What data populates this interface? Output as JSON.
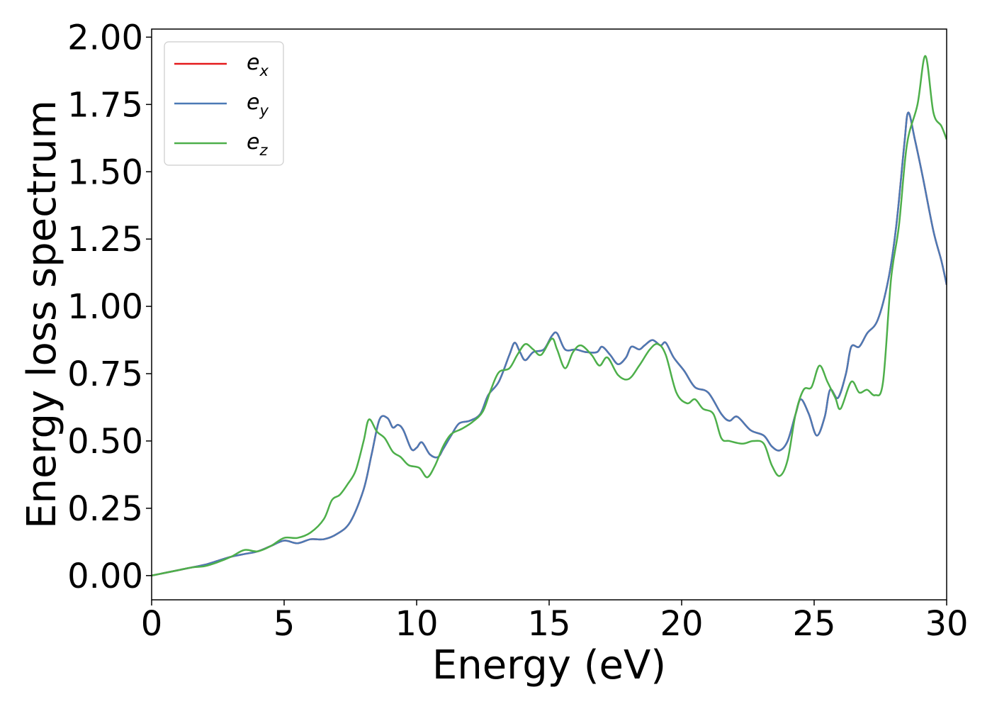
{
  "chart_data": {
    "type": "line",
    "xlabel": "Energy (eV)",
    "ylabel": "Energy loss spectrum",
    "xlim": [
      0,
      30
    ],
    "ylim": [
      -0.09,
      2.03
    ],
    "xticks": [
      0,
      5,
      10,
      15,
      20,
      25,
      30
    ],
    "xtick_labels": [
      "0",
      "5",
      "10",
      "15",
      "20",
      "25",
      "30"
    ],
    "yticks": [
      0,
      0.25,
      0.5,
      0.75,
      1.0,
      1.25,
      1.5,
      1.75,
      2.0
    ],
    "ytick_labels": [
      "0.00",
      "0.25",
      "0.50",
      "0.75",
      "1.00",
      "1.25",
      "1.50",
      "1.75",
      "2.00"
    ],
    "grid": false,
    "legend_position": "top-left",
    "series": [
      {
        "name": "e",
        "subscript": "x",
        "color": "#e41a1c",
        "points": [
          [
            0,
            0
          ],
          [
            0.5,
            0.01
          ],
          [
            1,
            0.02
          ],
          [
            1.5,
            0.03
          ],
          [
            2,
            0.04
          ],
          [
            2.5,
            0.055
          ],
          [
            3,
            0.07
          ],
          [
            3.5,
            0.08
          ],
          [
            4,
            0.09
          ],
          [
            4.5,
            0.11
          ],
          [
            5,
            0.13
          ],
          [
            5.5,
            0.12
          ],
          [
            6,
            0.135
          ],
          [
            6.5,
            0.135
          ],
          [
            7,
            0.155
          ],
          [
            7.5,
            0.2
          ],
          [
            8,
            0.32
          ],
          [
            8.3,
            0.45
          ],
          [
            8.6,
            0.58
          ],
          [
            8.9,
            0.585
          ],
          [
            9.1,
            0.55
          ],
          [
            9.3,
            0.56
          ],
          [
            9.5,
            0.54
          ],
          [
            9.8,
            0.47
          ],
          [
            10,
            0.475
          ],
          [
            10.2,
            0.495
          ],
          [
            10.5,
            0.45
          ],
          [
            10.8,
            0.44
          ],
          [
            11,
            0.47
          ],
          [
            11.3,
            0.52
          ],
          [
            11.6,
            0.565
          ],
          [
            12,
            0.575
          ],
          [
            12.4,
            0.6
          ],
          [
            12.7,
            0.67
          ],
          [
            13.1,
            0.72
          ],
          [
            13.5,
            0.82
          ],
          [
            13.7,
            0.865
          ],
          [
            13.9,
            0.83
          ],
          [
            14.1,
            0.8
          ],
          [
            14.4,
            0.83
          ],
          [
            14.8,
            0.84
          ],
          [
            15.1,
            0.89
          ],
          [
            15.3,
            0.9
          ],
          [
            15.6,
            0.84
          ],
          [
            16,
            0.84
          ],
          [
            16.4,
            0.83
          ],
          [
            16.8,
            0.83
          ],
          [
            17,
            0.85
          ],
          [
            17.3,
            0.82
          ],
          [
            17.6,
            0.785
          ],
          [
            17.9,
            0.81
          ],
          [
            18.1,
            0.85
          ],
          [
            18.4,
            0.84
          ],
          [
            18.6,
            0.855
          ],
          [
            18.9,
            0.875
          ],
          [
            19.2,
            0.855
          ],
          [
            19.4,
            0.865
          ],
          [
            19.7,
            0.81
          ],
          [
            20.1,
            0.76
          ],
          [
            20.5,
            0.7
          ],
          [
            21,
            0.68
          ],
          [
            21.5,
            0.6
          ],
          [
            21.8,
            0.575
          ],
          [
            22.1,
            0.59
          ],
          [
            22.6,
            0.54
          ],
          [
            23.1,
            0.52
          ],
          [
            23.4,
            0.48
          ],
          [
            23.7,
            0.465
          ],
          [
            24,
            0.5
          ],
          [
            24.3,
            0.6
          ],
          [
            24.5,
            0.655
          ],
          [
            24.8,
            0.6
          ],
          [
            25.1,
            0.52
          ],
          [
            25.4,
            0.59
          ],
          [
            25.6,
            0.69
          ],
          [
            25.9,
            0.66
          ],
          [
            26.2,
            0.75
          ],
          [
            26.4,
            0.85
          ],
          [
            26.7,
            0.85
          ],
          [
            27,
            0.9
          ],
          [
            27.4,
            0.95
          ],
          [
            27.8,
            1.1
          ],
          [
            28.1,
            1.3
          ],
          [
            28.4,
            1.6
          ],
          [
            28.55,
            1.72
          ],
          [
            28.8,
            1.62
          ],
          [
            29.1,
            1.48
          ],
          [
            29.5,
            1.28
          ],
          [
            29.8,
            1.17
          ],
          [
            30,
            1.08
          ]
        ]
      },
      {
        "name": "e",
        "subscript": "y",
        "color": "#4b7ab5",
        "points": [
          [
            0,
            0
          ],
          [
            0.5,
            0.01
          ],
          [
            1,
            0.02
          ],
          [
            1.5,
            0.03
          ],
          [
            2,
            0.04
          ],
          [
            2.5,
            0.055
          ],
          [
            3,
            0.07
          ],
          [
            3.5,
            0.08
          ],
          [
            4,
            0.09
          ],
          [
            4.5,
            0.11
          ],
          [
            5,
            0.13
          ],
          [
            5.5,
            0.12
          ],
          [
            6,
            0.135
          ],
          [
            6.5,
            0.135
          ],
          [
            7,
            0.155
          ],
          [
            7.5,
            0.2
          ],
          [
            8,
            0.32
          ],
          [
            8.3,
            0.45
          ],
          [
            8.6,
            0.58
          ],
          [
            8.9,
            0.585
          ],
          [
            9.1,
            0.55
          ],
          [
            9.3,
            0.56
          ],
          [
            9.5,
            0.54
          ],
          [
            9.8,
            0.47
          ],
          [
            10,
            0.475
          ],
          [
            10.2,
            0.495
          ],
          [
            10.5,
            0.45
          ],
          [
            10.8,
            0.44
          ],
          [
            11,
            0.47
          ],
          [
            11.3,
            0.52
          ],
          [
            11.6,
            0.565
          ],
          [
            12,
            0.575
          ],
          [
            12.4,
            0.6
          ],
          [
            12.7,
            0.67
          ],
          [
            13.1,
            0.72
          ],
          [
            13.5,
            0.82
          ],
          [
            13.7,
            0.865
          ],
          [
            13.9,
            0.83
          ],
          [
            14.1,
            0.8
          ],
          [
            14.4,
            0.83
          ],
          [
            14.8,
            0.84
          ],
          [
            15.1,
            0.89
          ],
          [
            15.3,
            0.9
          ],
          [
            15.6,
            0.84
          ],
          [
            16,
            0.84
          ],
          [
            16.4,
            0.83
          ],
          [
            16.8,
            0.83
          ],
          [
            17,
            0.85
          ],
          [
            17.3,
            0.82
          ],
          [
            17.6,
            0.785
          ],
          [
            17.9,
            0.81
          ],
          [
            18.1,
            0.85
          ],
          [
            18.4,
            0.84
          ],
          [
            18.6,
            0.855
          ],
          [
            18.9,
            0.875
          ],
          [
            19.2,
            0.855
          ],
          [
            19.4,
            0.865
          ],
          [
            19.7,
            0.81
          ],
          [
            20.1,
            0.76
          ],
          [
            20.5,
            0.7
          ],
          [
            21,
            0.68
          ],
          [
            21.5,
            0.6
          ],
          [
            21.8,
            0.575
          ],
          [
            22.1,
            0.59
          ],
          [
            22.6,
            0.54
          ],
          [
            23.1,
            0.52
          ],
          [
            23.4,
            0.48
          ],
          [
            23.7,
            0.465
          ],
          [
            24,
            0.5
          ],
          [
            24.3,
            0.6
          ],
          [
            24.5,
            0.655
          ],
          [
            24.8,
            0.6
          ],
          [
            25.1,
            0.52
          ],
          [
            25.4,
            0.59
          ],
          [
            25.6,
            0.69
          ],
          [
            25.9,
            0.66
          ],
          [
            26.2,
            0.75
          ],
          [
            26.4,
            0.85
          ],
          [
            26.7,
            0.85
          ],
          [
            27,
            0.9
          ],
          [
            27.4,
            0.95
          ],
          [
            27.8,
            1.1
          ],
          [
            28.1,
            1.3
          ],
          [
            28.4,
            1.6
          ],
          [
            28.55,
            1.72
          ],
          [
            28.8,
            1.62
          ],
          [
            29.1,
            1.48
          ],
          [
            29.5,
            1.28
          ],
          [
            29.8,
            1.17
          ],
          [
            30,
            1.08
          ]
        ]
      },
      {
        "name": "e",
        "subscript": "z",
        "color": "#4daf4a",
        "points": [
          [
            0,
            0
          ],
          [
            0.5,
            0.01
          ],
          [
            1,
            0.02
          ],
          [
            1.5,
            0.03
          ],
          [
            2,
            0.035
          ],
          [
            2.5,
            0.05
          ],
          [
            3,
            0.07
          ],
          [
            3.5,
            0.095
          ],
          [
            4,
            0.09
          ],
          [
            4.5,
            0.11
          ],
          [
            5,
            0.14
          ],
          [
            5.5,
            0.14
          ],
          [
            6,
            0.16
          ],
          [
            6.5,
            0.21
          ],
          [
            6.8,
            0.28
          ],
          [
            7.1,
            0.3
          ],
          [
            7.4,
            0.34
          ],
          [
            7.7,
            0.39
          ],
          [
            8,
            0.5
          ],
          [
            8.2,
            0.58
          ],
          [
            8.5,
            0.535
          ],
          [
            8.8,
            0.51
          ],
          [
            9.1,
            0.46
          ],
          [
            9.4,
            0.44
          ],
          [
            9.7,
            0.41
          ],
          [
            10.1,
            0.4
          ],
          [
            10.4,
            0.365
          ],
          [
            10.7,
            0.41
          ],
          [
            11,
            0.48
          ],
          [
            11.3,
            0.525
          ],
          [
            11.7,
            0.545
          ],
          [
            12.1,
            0.57
          ],
          [
            12.5,
            0.61
          ],
          [
            12.8,
            0.69
          ],
          [
            13.1,
            0.755
          ],
          [
            13.5,
            0.77
          ],
          [
            13.8,
            0.82
          ],
          [
            14.1,
            0.86
          ],
          [
            14.4,
            0.84
          ],
          [
            14.7,
            0.82
          ],
          [
            15.1,
            0.88
          ],
          [
            15.3,
            0.84
          ],
          [
            15.6,
            0.77
          ],
          [
            15.9,
            0.83
          ],
          [
            16.2,
            0.855
          ],
          [
            16.6,
            0.82
          ],
          [
            16.9,
            0.78
          ],
          [
            17.2,
            0.81
          ],
          [
            17.6,
            0.745
          ],
          [
            18,
            0.73
          ],
          [
            18.4,
            0.78
          ],
          [
            18.8,
            0.84
          ],
          [
            19.1,
            0.86
          ],
          [
            19.4,
            0.82
          ],
          [
            19.8,
            0.68
          ],
          [
            20.2,
            0.64
          ],
          [
            20.5,
            0.655
          ],
          [
            20.8,
            0.62
          ],
          [
            21.2,
            0.6
          ],
          [
            21.5,
            0.51
          ],
          [
            21.8,
            0.5
          ],
          [
            22.3,
            0.49
          ],
          [
            22.7,
            0.5
          ],
          [
            23.1,
            0.49
          ],
          [
            23.4,
            0.41
          ],
          [
            23.7,
            0.37
          ],
          [
            24,
            0.43
          ],
          [
            24.3,
            0.6
          ],
          [
            24.6,
            0.69
          ],
          [
            24.9,
            0.7
          ],
          [
            25.2,
            0.78
          ],
          [
            25.5,
            0.72
          ],
          [
            25.8,
            0.66
          ],
          [
            26,
            0.62
          ],
          [
            26.4,
            0.72
          ],
          [
            26.7,
            0.68
          ],
          [
            27,
            0.69
          ],
          [
            27.3,
            0.67
          ],
          [
            27.6,
            0.72
          ],
          [
            27.9,
            1.1
          ],
          [
            28.2,
            1.3
          ],
          [
            28.5,
            1.6
          ],
          [
            28.9,
            1.75
          ],
          [
            29.2,
            1.93
          ],
          [
            29.5,
            1.72
          ],
          [
            29.8,
            1.67
          ],
          [
            30,
            1.62
          ]
        ]
      }
    ]
  }
}
